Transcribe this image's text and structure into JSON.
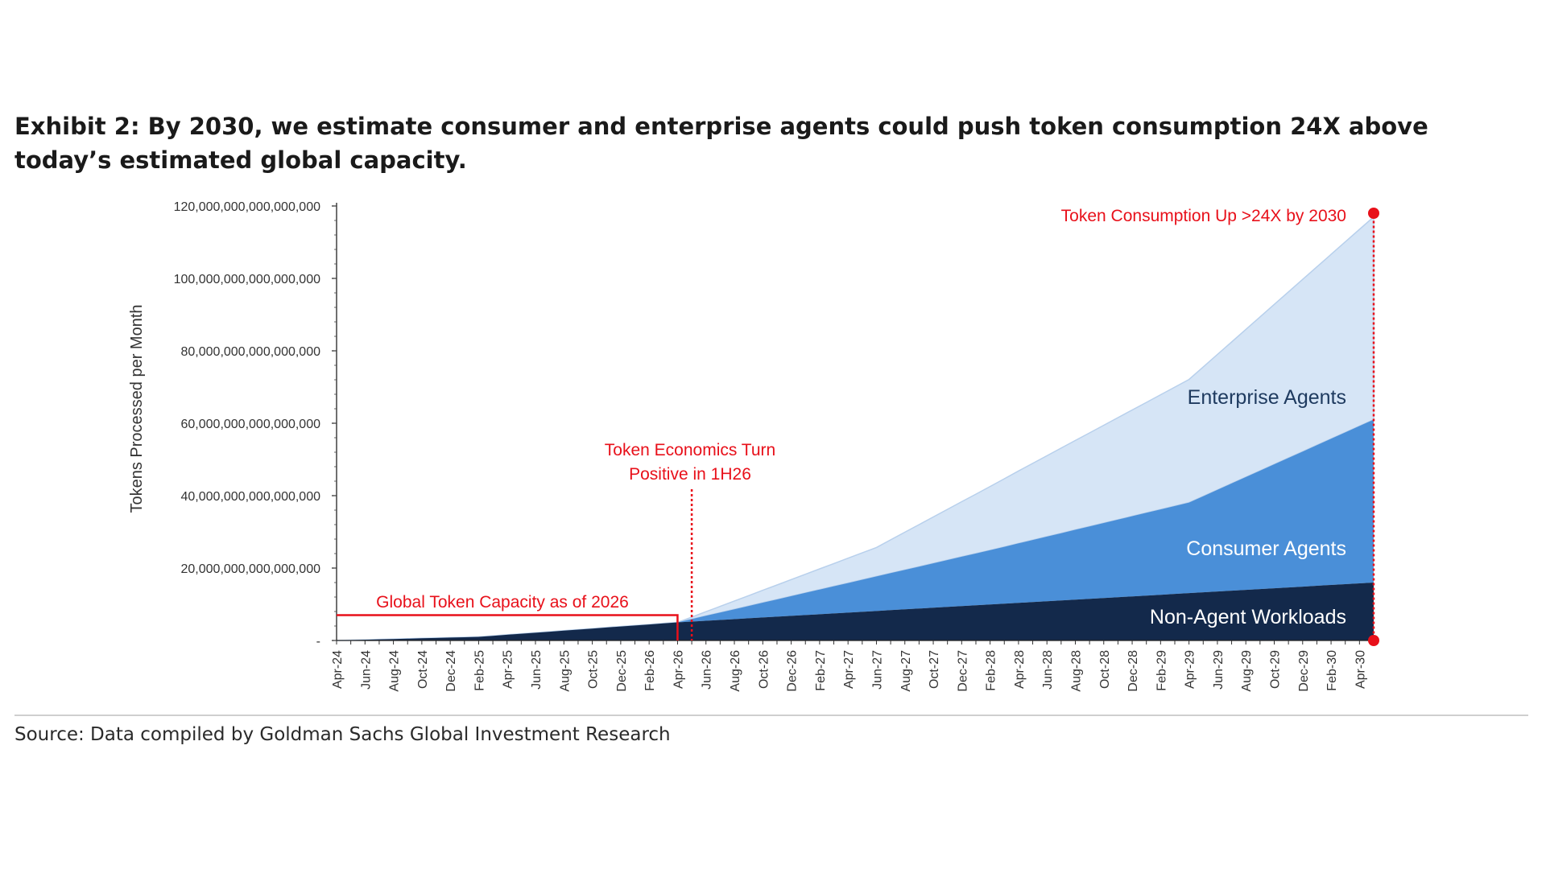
{
  "header": {
    "title": "Exhibit 2: By 2030, we estimate consumer and enterprise agents could push token consumption 24X above today’s estimated global capacity."
  },
  "footer": {
    "source": "Source: Data compiled by Goldman Sachs Global Investment Research"
  },
  "chart_data": {
    "type": "area",
    "stacked": true,
    "ylabel": "Tokens Processed per Month",
    "ylim": [
      0,
      120000000000000000
    ],
    "yticks": [
      0,
      20000000000000000,
      40000000000000000,
      60000000000000000,
      80000000000000000,
      100000000000000000,
      120000000000000000
    ],
    "ytick_labels": [
      "-",
      "20,000,000,000,000,000",
      "40,000,000,000,000,000",
      "60,000,000,000,000,000",
      "80,000,000,000,000,000",
      "100,000,000,000,000,000",
      "120,000,000,000,000,000"
    ],
    "categories": [
      "Apr-24",
      "Jun-24",
      "Aug-24",
      "Oct-24",
      "Dec-24",
      "Feb-25",
      "Apr-25",
      "Jun-25",
      "Aug-25",
      "Oct-25",
      "Dec-25",
      "Feb-26",
      "Apr-26",
      "Jun-26",
      "Aug-26",
      "Oct-26",
      "Dec-26",
      "Feb-27",
      "Apr-27",
      "Jun-27",
      "Aug-27",
      "Oct-27",
      "Dec-27",
      "Feb-28",
      "Apr-28",
      "Jun-28",
      "Aug-28",
      "Oct-28",
      "Dec-28",
      "Feb-29",
      "Apr-29",
      "Jun-29",
      "Aug-29",
      "Oct-29",
      "Dec-29",
      "Feb-30",
      "Apr-30"
    ],
    "x_start": "Apr-24",
    "x_end": "May-30",
    "series": [
      {
        "name": "Non-Agent Workloads",
        "color": "#13294b",
        "points": [
          [
            "Apr-24",
            0
          ],
          [
            "Feb-25",
            1000000000000000
          ],
          [
            "Apr-26",
            5000000000000000
          ],
          [
            "May-30",
            16000000000000000
          ]
        ]
      },
      {
        "name": "Consumer Agents",
        "color": "#4a8fd8",
        "points": [
          [
            "Apr-24",
            0
          ],
          [
            "Apr-26",
            0
          ],
          [
            "Feb-28",
            15000000000000000
          ],
          [
            "Apr-29",
            25000000000000000
          ],
          [
            "May-30",
            45000000000000000
          ]
        ]
      },
      {
        "name": "Enterprise Agents",
        "color": "#d6e5f6",
        "points": [
          [
            "Apr-24",
            0
          ],
          [
            "Apr-26",
            0
          ],
          [
            "Jun-27",
            8000000000000000
          ],
          [
            "Apr-28",
            20000000000000000
          ],
          [
            "Apr-29",
            34000000000000000
          ],
          [
            "May-30",
            56000000000000000
          ]
        ]
      }
    ],
    "annotations": {
      "capacity": {
        "label": "Global Token Capacity as of 2026",
        "value": 7000000000000000,
        "x_start": "Apr-24",
        "x_end": "Apr-26"
      },
      "economics": {
        "label_line1": "Token Economics Turn",
        "label_line2": "Positive in 1H26",
        "x": "May-26"
      },
      "consumption": {
        "label": "Token Consumption Up >24X by 2030",
        "x": "May-30",
        "value": 117000000000000000
      }
    },
    "annotation_color": "#e8101a",
    "grid": false,
    "legend": "inline labels"
  }
}
